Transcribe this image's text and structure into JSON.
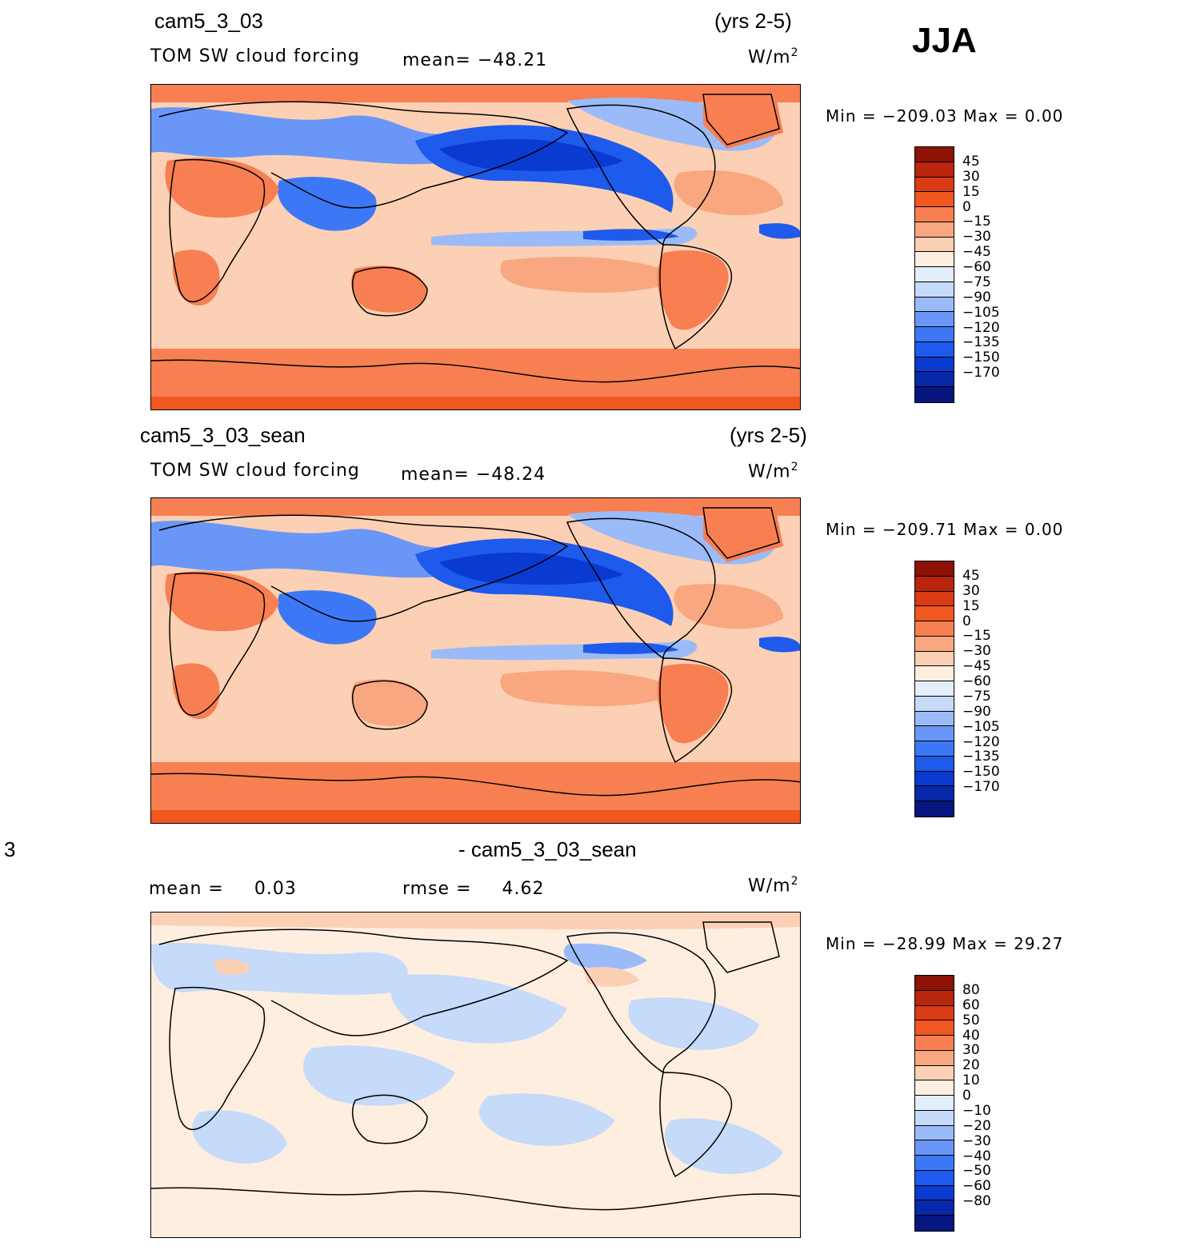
{
  "season": "JJA",
  "colors": {
    "cf_levels": [
      "#07167f",
      "#0728a8",
      "#0a3ad0",
      "#1e5aeb",
      "#3c78f5",
      "#6a97f7",
      "#9bbbf8",
      "#c6daf9",
      "#e3eefb",
      "#fdeee0",
      "#fbd0b4",
      "#f9a780",
      "#f77f52",
      "#f0581f",
      "#d93b14",
      "#b9250d",
      "#8c1306"
    ],
    "diff_levels": [
      "#07167f",
      "#0728a8",
      "#0a3ad0",
      "#1e5aeb",
      "#3c78f5",
      "#6a97f7",
      "#9bbbf8",
      "#c6daf9",
      "#e3eefb",
      "#fdeee0",
      "#fbd0b4",
      "#f9a780",
      "#f77f52",
      "#f0581f",
      "#d93b14",
      "#b9250d",
      "#8c1306"
    ]
  },
  "panels": [
    {
      "case": "cam5_3_03",
      "years": "(yrs 2-5)",
      "variable": "TOM SW cloud forcing",
      "mean_label": "mean=",
      "mean_value": "−48.21",
      "units": "W/m",
      "units_sup": "2",
      "minmax": "Min  =  −209.03  Max  =     0.00",
      "colorbar_labels": [
        "45",
        "30",
        "15",
        "0",
        "−15",
        "−30",
        "−45",
        "−60",
        "−75",
        "−90",
        "−105",
        "−120",
        "−135",
        "−150",
        "−170"
      ]
    },
    {
      "case": "cam5_3_03_sean",
      "years": "(yrs 2-5)",
      "variable": "TOM SW cloud forcing",
      "mean_label": "mean=",
      "mean_value": "−48.24",
      "units": "W/m",
      "units_sup": "2",
      "minmax": "Min  =  −209.71  Max  =     0.00",
      "colorbar_labels": [
        "45",
        "30",
        "15",
        "0",
        "−15",
        "−30",
        "−45",
        "−60",
        "−75",
        "−90",
        "−105",
        "−120",
        "−135",
        "−150",
        "−170"
      ]
    },
    {
      "case_left": "3",
      "case": "- cam5_3_03_sean",
      "mean_label": "mean  =",
      "mean_value": "0.03",
      "rmse_label": "rmse  =",
      "rmse_value": "4.62",
      "units": "W/m",
      "units_sup": "2",
      "minmax": "Min  =  −28.99  Max  =    29.27",
      "colorbar_labels": [
        "80",
        "60",
        "50",
        "40",
        "30",
        "20",
        "10",
        "0",
        "−10",
        "−20",
        "−30",
        "−40",
        "−50",
        "−60",
        "−80"
      ]
    }
  ]
}
